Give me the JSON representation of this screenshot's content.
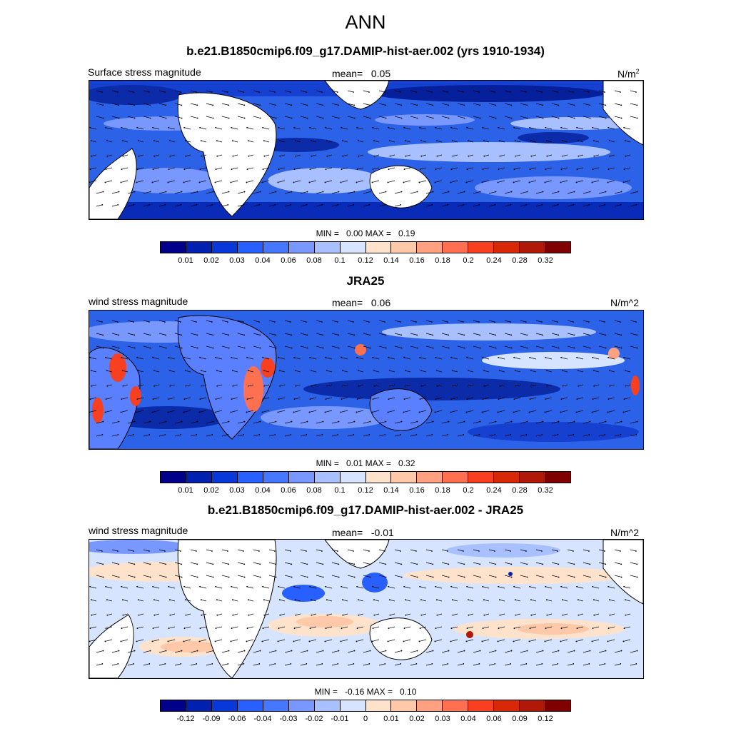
{
  "season": "ANN",
  "colors": {
    "pos": [
      "#00008b",
      "#0020b0",
      "#0838d8",
      "#2860ff",
      "#4678ff",
      "#7898ff",
      "#a8c0ff",
      "#d6e4ff",
      "#ffe2cc",
      "#ffc8a8",
      "#ffa080",
      "#ff7050",
      "#f84020",
      "#d82808",
      "#b01808",
      "#800000"
    ]
  },
  "panels": [
    {
      "title": "b.e21.B1850cmip6.f09_g17.DAMIP-hist-aer.002 (yrs 1910-1934)",
      "left_label": "Surface stress magnitude",
      "mean_label": "mean=",
      "mean_value": "0.05",
      "units_base": "N/m",
      "units_sup": "2",
      "min_label": "MIN =",
      "min_value": "0.00",
      "max_label": "MAX =",
      "max_value": "0.19",
      "ticks": [
        "0.01",
        "0.02",
        "0.03",
        "0.04",
        "0.06",
        "0.08",
        "0.1",
        "0.12",
        "0.14",
        "0.16",
        "0.18",
        "0.2",
        "0.24",
        "0.28",
        "0.32"
      ]
    },
    {
      "title": "JRA25",
      "left_label": "wind stress magnitude",
      "mean_label": "mean=",
      "mean_value": "0.06",
      "units": "N/m^2",
      "min_label": "MIN =",
      "min_value": "0.01",
      "max_label": "MAX =",
      "max_value": "0.32",
      "ticks": [
        "0.01",
        "0.02",
        "0.03",
        "0.04",
        "0.06",
        "0.08",
        "0.1",
        "0.12",
        "0.14",
        "0.16",
        "0.18",
        "0.2",
        "0.24",
        "0.28",
        "0.32"
      ]
    },
    {
      "title": "b.e21.B1850cmip6.f09_g17.DAMIP-hist-aer.002 - JRA25",
      "left_label": "wind stress magnitude",
      "mean_label": "mean=",
      "mean_value": "-0.01",
      "units": "N/m^2",
      "min_label": "MIN =",
      "min_value": "-0.16",
      "max_label": "MAX =",
      "max_value": "0.10",
      "ticks": [
        "-0.12",
        "-0.09",
        "-0.06",
        "-0.04",
        "-0.03",
        "-0.02",
        "-0.01",
        "0",
        "0.01",
        "0.02",
        "0.03",
        "0.04",
        "0.06",
        "0.09",
        "0.12"
      ]
    }
  ]
}
